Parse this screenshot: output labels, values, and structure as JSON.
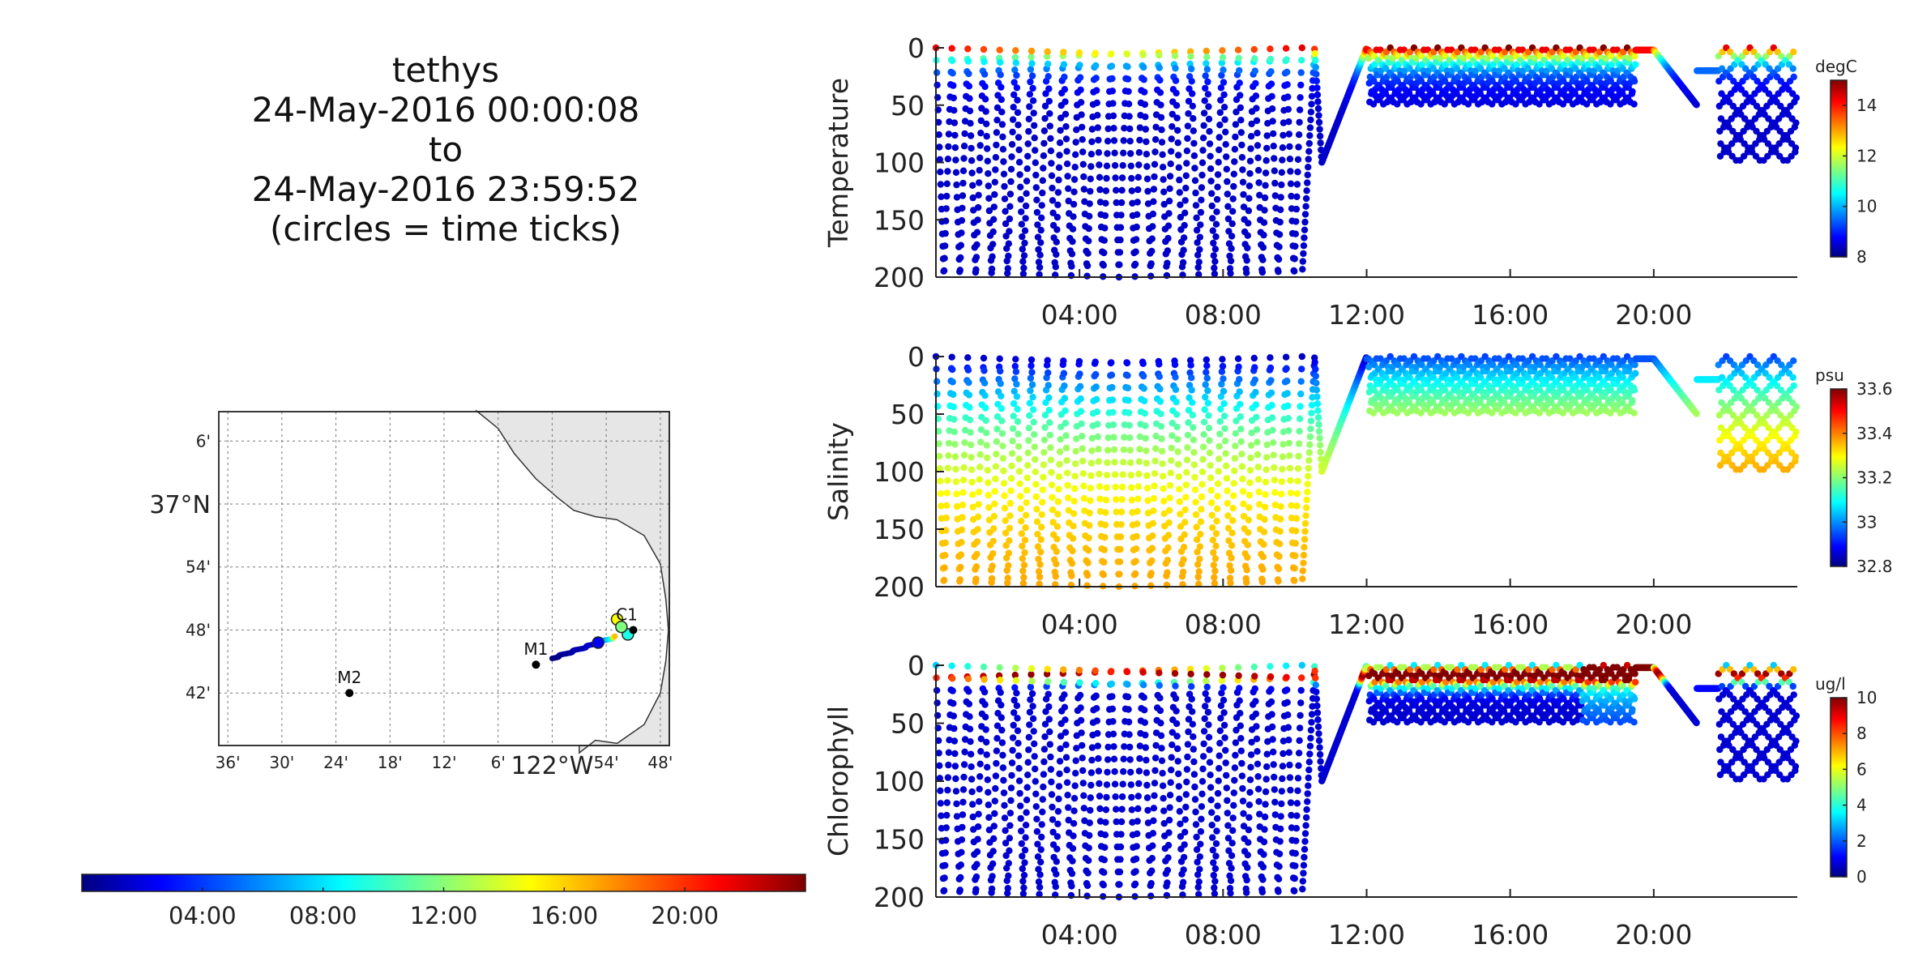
{
  "title": {
    "platform": "tethys",
    "start": "24-May-2016 00:00:08",
    "to": "to",
    "end": "24-May-2016 23:59:52",
    "note": "(circles = time ticks)"
  },
  "chart_data": [
    {
      "type": "scatter",
      "name": "temperature-section",
      "ylabel": "Temperature",
      "unit": "degC",
      "ylim": [
        0,
        200
      ],
      "y_reversed": true,
      "yticks": [
        "0",
        "50",
        "100",
        "150",
        "200"
      ],
      "xticks": [
        "04:00",
        "08:00",
        "12:00",
        "16:00",
        "20:00"
      ],
      "colorbar": {
        "min": 8,
        "max": 15,
        "ticks": [
          "8",
          "10",
          "12",
          "14"
        ]
      }
    },
    {
      "type": "scatter",
      "name": "salinity-section",
      "ylabel": "Salinity",
      "unit": "psu",
      "ylim": [
        0,
        200
      ],
      "y_reversed": true,
      "yticks": [
        "0",
        "50",
        "100",
        "150",
        "200"
      ],
      "xticks": [
        "04:00",
        "08:00",
        "12:00",
        "16:00",
        "20:00"
      ],
      "colorbar": {
        "min": 32.8,
        "max": 33.6,
        "ticks": [
          "32.8",
          "33",
          "33.2",
          "33.4",
          "33.6"
        ]
      }
    },
    {
      "type": "scatter",
      "name": "chlorophyll-section",
      "ylabel": "Chlorophyll",
      "unit": "ug/l",
      "ylim": [
        0,
        200
      ],
      "y_reversed": true,
      "yticks": [
        "0",
        "50",
        "100",
        "150",
        "200"
      ],
      "xticks": [
        "04:00",
        "08:00",
        "12:00",
        "16:00",
        "20:00"
      ],
      "colorbar": {
        "min": 0,
        "max": 10,
        "ticks": [
          "0",
          "2",
          "4",
          "6",
          "8",
          "10"
        ]
      }
    },
    {
      "type": "map",
      "name": "track-map",
      "lat_ticks": [
        "6'",
        "37°N",
        "54'",
        "48'",
        "42'"
      ],
      "lon_ticks": [
        "36'",
        "30'",
        "24'",
        "18'",
        "12'",
        "6'",
        "122°W",
        "54'",
        "48'"
      ],
      "moorings": [
        {
          "name": "M2",
          "lon": -122.375,
          "lat": 36.7
        },
        {
          "name": "M1",
          "lon": -122.03,
          "lat": 36.745
        },
        {
          "name": "C1",
          "lon": -121.85,
          "lat": 36.8
        }
      ]
    }
  ],
  "time_colorbar": {
    "ticks": [
      "04:00",
      "08:00",
      "12:00",
      "16:00",
      "20:00"
    ]
  }
}
